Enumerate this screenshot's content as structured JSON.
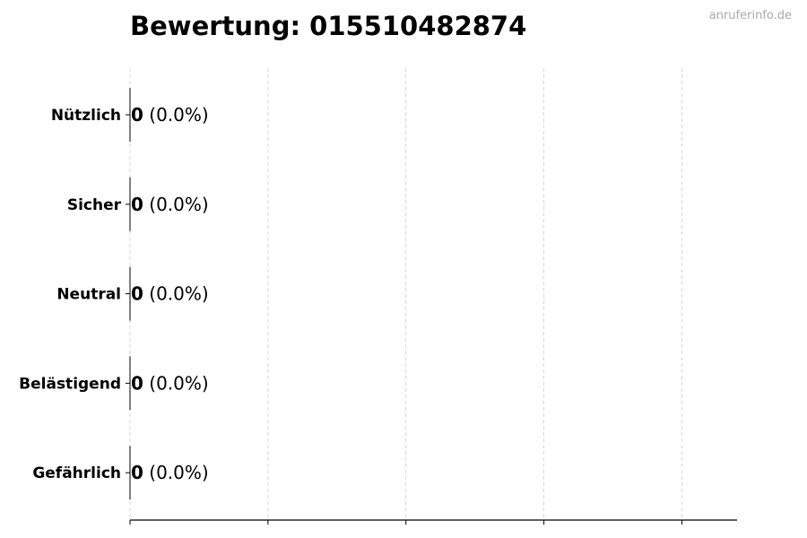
{
  "chart_data": {
    "type": "bar",
    "orientation": "horizontal",
    "title": "Bewertung: 015510482874",
    "watermark": "anruferinfo.de",
    "categories": [
      "Nützlich",
      "Sicher",
      "Neutral",
      "Belästigend",
      "Gefährlich"
    ],
    "values": [
      0,
      0,
      0,
      0,
      0
    ],
    "data_labels": [
      {
        "count": "0",
        "percent": "(0.0%)"
      },
      {
        "count": "0",
        "percent": "(0.0%)"
      },
      {
        "count": "0",
        "percent": "(0.0%)"
      },
      {
        "count": "0",
        "percent": "(0.0%)"
      },
      {
        "count": "0",
        "percent": "(0.0%)"
      }
    ],
    "xlabel": "",
    "ylabel": "",
    "x_tick_labels_shown": false,
    "grid": {
      "x": true,
      "style": "dashed",
      "color": "#cccccc"
    },
    "colors": {
      "text": "#000000",
      "watermark": "#aaaaaa",
      "grid": "#cccccc"
    }
  }
}
